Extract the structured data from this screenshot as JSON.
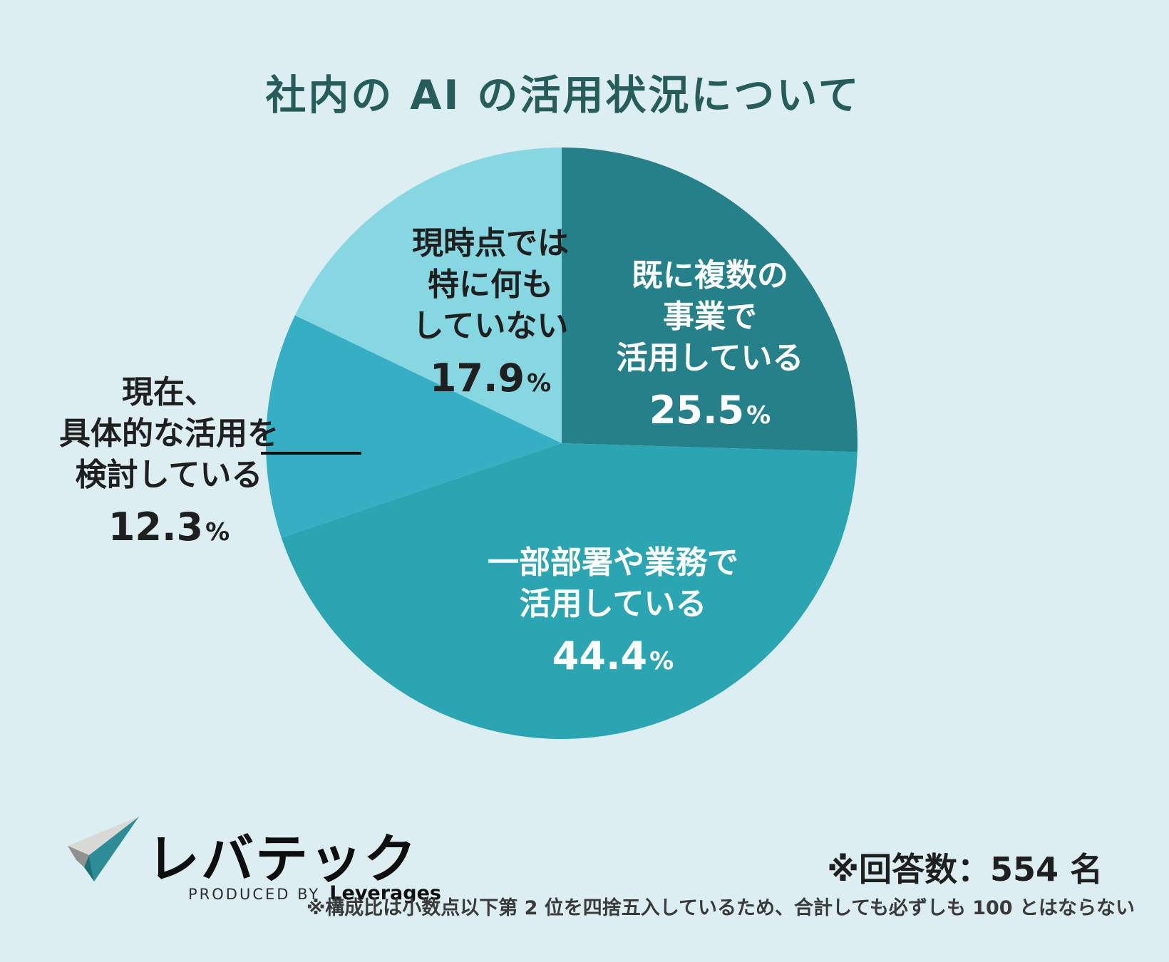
{
  "title": "社内の AI の活用状況について",
  "chart_data": {
    "type": "pie",
    "title": "社内の AI の活用状況について",
    "start_angle_deg": 0,
    "direction": "clockwise",
    "legend_position": "none",
    "slices": [
      {
        "label": "既に複数の事業で活用している",
        "label_lines": [
          "既に複数の",
          "事業で",
          "活用している"
        ],
        "value": 25.5,
        "unit": "%",
        "color": "#26808A",
        "text_color": "#FFFFFF",
        "label_placement": "inside"
      },
      {
        "label": "一部部署や業務で活用している",
        "label_lines": [
          "一部部署や業務で",
          "活用している"
        ],
        "value": 44.4,
        "unit": "%",
        "color": "#2CA5B2",
        "text_color": "#FFFFFF",
        "label_placement": "inside"
      },
      {
        "label": "現在、具体的な活用を検討している",
        "label_lines": [
          "現在、",
          "具体的な活用を",
          "検討している"
        ],
        "value": 12.3,
        "unit": "%",
        "color": "#36AEC4",
        "text_color": "#1F1F1F",
        "label_placement": "outside-left"
      },
      {
        "label": "現時点では特に何もしていない",
        "label_lines": [
          "現時点では",
          "特に何も",
          "していない"
        ],
        "value": 17.9,
        "unit": "%",
        "color": "#87D7E2",
        "text_color": "#1F1F1F",
        "label_placement": "inside"
      }
    ]
  },
  "footer": {
    "logo": {
      "brand": "レバテック",
      "produced_by": "PRODUCED BY",
      "company": "Leverages"
    },
    "respondents_note": "※回答数：554 名",
    "rounding_note": "※構成比は小数点以下第 2 位を四捨五入しているため、合計しても必ずしも 100 とはならない"
  },
  "colors": {
    "background": "#DCEEF2",
    "title_text": "#265C59",
    "pointer_line": "#111111",
    "logo_teal": "#2D8C96",
    "logo_dark_teal": "#1E6E77",
    "logo_light_gray": "#D8D8D4",
    "logo_mid_gray": "#909090"
  }
}
